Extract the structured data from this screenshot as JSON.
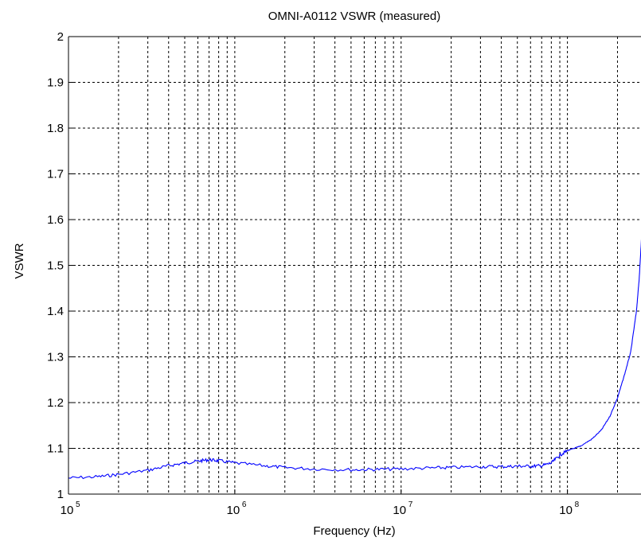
{
  "chart_data": {
    "type": "line",
    "title": "OMNI-A0112 VSWR (measured)",
    "xlabel": "Frequency (Hz)",
    "ylabel": "VSWR",
    "x_scale": "log",
    "xlim": [
      100000,
      280000000
    ],
    "ylim": [
      1,
      2
    ],
    "grid": true,
    "legend": "none",
    "line_color": "#0000ff",
    "grid_color": "#000000",
    "x_ticks": [
      {
        "value": 100000,
        "base": "10",
        "exp": "5"
      },
      {
        "value": 1000000,
        "base": "10",
        "exp": "6"
      },
      {
        "value": 10000000,
        "base": "10",
        "exp": "7"
      },
      {
        "value": 100000000,
        "base": "10",
        "exp": "8"
      }
    ],
    "y_ticks": [
      {
        "value": 1,
        "label": "1"
      },
      {
        "value": 1.1,
        "label": "1.1"
      },
      {
        "value": 1.2,
        "label": "1.2"
      },
      {
        "value": 1.3,
        "label": "1.3"
      },
      {
        "value": 1.4,
        "label": "1.4"
      },
      {
        "value": 1.5,
        "label": "1.5"
      },
      {
        "value": 1.6,
        "label": "1.6"
      },
      {
        "value": 1.7,
        "label": "1.7"
      },
      {
        "value": 1.8,
        "label": "1.8"
      },
      {
        "value": 1.9,
        "label": "1.9"
      },
      {
        "value": 2,
        "label": "2"
      }
    ],
    "series": [
      {
        "x": [
          100000,
          150000,
          200000,
          300000,
          400000,
          500000,
          600000,
          700000,
          800000,
          1000000,
          1500000,
          2000000,
          3000000,
          5000000,
          7000000,
          10000000,
          15000000,
          20000000,
          30000000,
          40000000,
          50000000,
          60000000,
          70000000,
          80000000,
          90000000,
          100000000,
          110000000,
          120000000,
          140000000,
          160000000,
          180000000,
          200000000,
          220000000,
          240000000,
          260000000,
          270000000,
          280000000
        ],
        "y": [
          1.035,
          1.038,
          1.043,
          1.052,
          1.062,
          1.068,
          1.072,
          1.075,
          1.073,
          1.068,
          1.062,
          1.058,
          1.055,
          1.053,
          1.054,
          1.055,
          1.057,
          1.058,
          1.06,
          1.06,
          1.061,
          1.061,
          1.062,
          1.068,
          1.085,
          1.095,
          1.1,
          1.105,
          1.12,
          1.14,
          1.17,
          1.21,
          1.26,
          1.31,
          1.4,
          1.47,
          1.57
        ]
      }
    ]
  }
}
